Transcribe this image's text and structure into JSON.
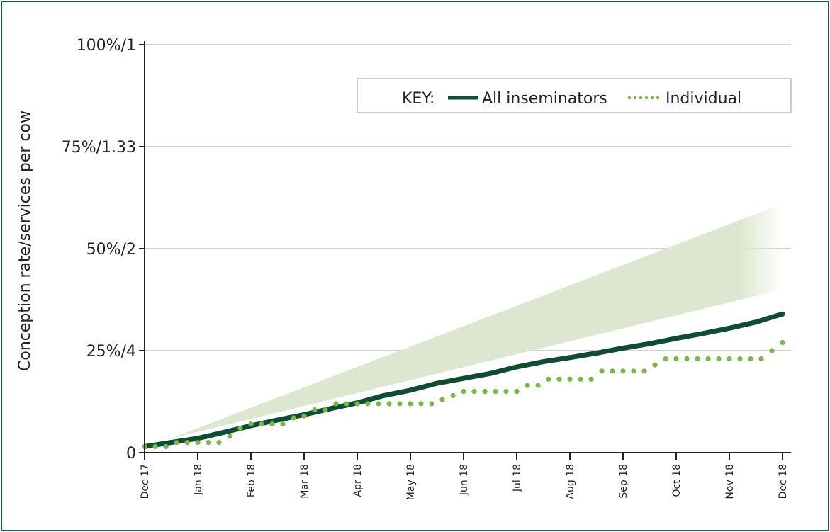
{
  "colors": {
    "frame": "#1f5a44",
    "all_inseminators": "#0f4d33",
    "individual": "#7ab648",
    "target_band": "#dde7cf",
    "grid": "#c4c4c4",
    "axis": "#222222"
  },
  "chart_data": {
    "type": "line",
    "ylabel": "Conception rate/services per cow",
    "yticks": [
      {
        "value": 0,
        "label": "0"
      },
      {
        "value": 25,
        "label": "25%/4"
      },
      {
        "value": 50,
        "label": "50%/2"
      },
      {
        "value": 75,
        "label": "75%/1.33"
      },
      {
        "value": 100,
        "label": "100%/1"
      }
    ],
    "ylim": [
      0,
      100
    ],
    "xlim": [
      0,
      12
    ],
    "xticks": [
      {
        "value": 0,
        "label": "Dec 17"
      },
      {
        "value": 1,
        "label": "Jan 18"
      },
      {
        "value": 2,
        "label": "Feb 18"
      },
      {
        "value": 3,
        "label": "Mar 18"
      },
      {
        "value": 4,
        "label": "Apr 18"
      },
      {
        "value": 5,
        "label": "May 18"
      },
      {
        "value": 6,
        "label": "Jun 18"
      },
      {
        "value": 7,
        "label": "Jul 18"
      },
      {
        "value": 8,
        "label": "Aug 18"
      },
      {
        "value": 9,
        "label": "Sep 18"
      },
      {
        "value": 10,
        "label": "Oct 18"
      },
      {
        "value": 11,
        "label": "Nov 18"
      },
      {
        "value": 12,
        "label": "Dec 18"
      }
    ],
    "grid": true,
    "legend": {
      "title": "KEY:",
      "position": "top-right",
      "items": [
        {
          "name": "All inseminators",
          "style": "solid"
        },
        {
          "name": "Individual",
          "style": "dotted"
        }
      ]
    },
    "band": {
      "x": [
        0.5,
        12
      ],
      "lower": [
        3.5,
        40
      ],
      "upper": [
        3.5,
        61
      ]
    },
    "series": [
      {
        "name": "All inseminators",
        "style": "solid",
        "x": [
          0,
          0.5,
          1,
          1.5,
          2,
          2.5,
          3,
          3.5,
          4,
          4.5,
          5,
          5.5,
          6,
          6.5,
          7,
          7.5,
          8,
          8.5,
          9,
          9.5,
          10,
          10.5,
          11,
          11.5,
          12
        ],
        "y": [
          1.5,
          2.5,
          3.5,
          5,
          6.6,
          8,
          9.3,
          10.8,
          12.2,
          14,
          15.3,
          17,
          18.2,
          19.4,
          21,
          22.3,
          23.3,
          24.4,
          25.6,
          26.7,
          28,
          29.2,
          30.5,
          32,
          34
        ]
      },
      {
        "name": "Individual",
        "style": "dotted",
        "x": [
          0,
          0.2,
          0.4,
          0.6,
          0.8,
          1.0,
          1.2,
          1.4,
          1.6,
          1.8,
          2.0,
          2.2,
          2.4,
          2.6,
          2.8,
          3.0,
          3.2,
          3.4,
          3.6,
          3.8,
          4.0,
          4.2,
          4.4,
          4.6,
          4.8,
          5.0,
          5.2,
          5.4,
          5.6,
          5.8,
          6.0,
          6.2,
          6.4,
          6.6,
          6.8,
          7.0,
          7.2,
          7.4,
          7.6,
          7.8,
          8.0,
          8.2,
          8.4,
          8.6,
          8.8,
          9.0,
          9.2,
          9.4,
          9.6,
          9.8,
          10.0,
          10.2,
          10.4,
          10.6,
          10.8,
          11.0,
          11.2,
          11.4,
          11.6,
          11.8,
          12.0
        ],
        "y": [
          1.5,
          1.5,
          1.5,
          2.5,
          2.5,
          2.5,
          2.5,
          2.5,
          4,
          6,
          7,
          7,
          7,
          7,
          8.5,
          9,
          10.5,
          10.5,
          12,
          12,
          12,
          12,
          12,
          12,
          12,
          12,
          12,
          12,
          13,
          14,
          15,
          15,
          15,
          15,
          15,
          15,
          16.5,
          16.5,
          18,
          18,
          18,
          18,
          18,
          20,
          20,
          20,
          20,
          20,
          21.5,
          23,
          23,
          23,
          23,
          23,
          23,
          23,
          23,
          23,
          23,
          25,
          27
        ]
      }
    ]
  }
}
